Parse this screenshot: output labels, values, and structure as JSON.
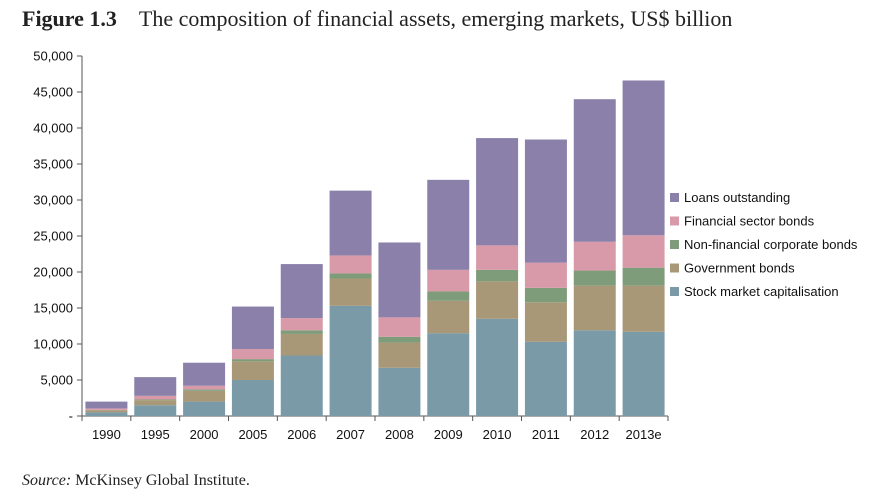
{
  "figure": {
    "label": "Figure 1.3",
    "title": "The composition of financial assets, emerging markets, US$ billion"
  },
  "source": {
    "label": "Source:",
    "text": "McKinsey Global Institute."
  },
  "chart_data": {
    "type": "bar",
    "stacked": true,
    "title": "The composition of financial assets, emerging markets, US$ billion",
    "xlabel": "",
    "ylabel": "",
    "ylim": [
      0,
      50000
    ],
    "yticks": [
      {
        "value": 0,
        "label": "-"
      },
      {
        "value": 5000,
        "label": "5,000"
      },
      {
        "value": 10000,
        "label": "10,000"
      },
      {
        "value": 15000,
        "label": "15,000"
      },
      {
        "value": 20000,
        "label": "20,000"
      },
      {
        "value": 25000,
        "label": "25,000"
      },
      {
        "value": 30000,
        "label": "30,000"
      },
      {
        "value": 35000,
        "label": "35,000"
      },
      {
        "value": 40000,
        "label": "40,000"
      },
      {
        "value": 45000,
        "label": "45,000"
      },
      {
        "value": 50000,
        "label": "50,000"
      }
    ],
    "grid": false,
    "legend_position": "right",
    "categories": [
      "1990",
      "1995",
      "2000",
      "2005",
      "2006",
      "2007",
      "2008",
      "2009",
      "2010",
      "2011",
      "2012",
      "2013e"
    ],
    "series": [
      {
        "name": "Stock market capitalisation",
        "color": "#7a9aa8",
        "values": [
          500,
          1500,
          2000,
          5000,
          8400,
          15300,
          6700,
          11500,
          13500,
          10300,
          11900,
          11700
        ]
      },
      {
        "name": "Government bonds",
        "color": "#a89878",
        "values": [
          300,
          700,
          1500,
          2600,
          3000,
          3800,
          3500,
          4500,
          5200,
          5500,
          6200,
          6400
        ]
      },
      {
        "name": "Non-financial corporate bonds",
        "color": "#7e9c7a",
        "values": [
          50,
          100,
          200,
          300,
          500,
          700,
          800,
          1300,
          1600,
          2000,
          2100,
          2500
        ]
      },
      {
        "name": "Financial sector bonds",
        "color": "#d899a8",
        "values": [
          200,
          500,
          500,
          1400,
          1700,
          2500,
          2700,
          3000,
          3400,
          3500,
          4000,
          4500
        ]
      },
      {
        "name": "Loans outstanding",
        "color": "#8a80aa",
        "values": [
          950,
          2600,
          3200,
          5900,
          7500,
          9000,
          10400,
          12500,
          14900,
          17100,
          19800,
          21500
        ]
      }
    ],
    "legend_order": [
      "Loans outstanding",
      "Financial sector bonds",
      "Non-financial corporate bonds",
      "Government bonds",
      "Stock market capitalisation"
    ]
  }
}
